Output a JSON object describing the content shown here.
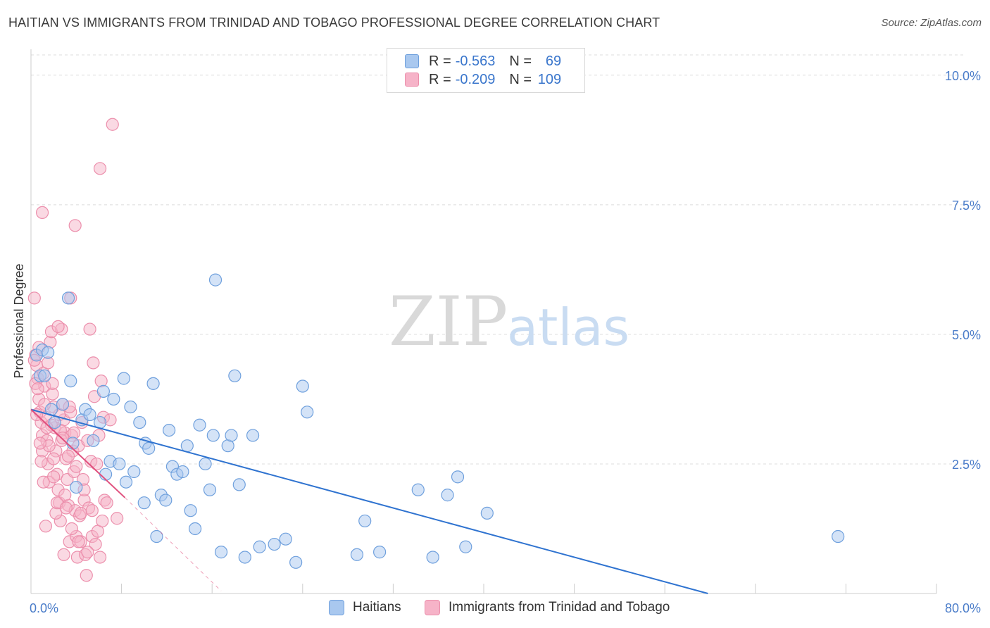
{
  "title": "HAITIAN VS IMMIGRANTS FROM TRINIDAD AND TOBAGO PROFESSIONAL DEGREE CORRELATION CHART",
  "source": "Source: ZipAtlas.com",
  "watermark": {
    "zip": "ZIP",
    "atlas": "atlas"
  },
  "colors": {
    "blue_fill": "#a9c8ef",
    "blue_stroke": "#6fa0dd",
    "blue_line": "#2f73d0",
    "pink_fill": "#f6b3c8",
    "pink_stroke": "#ec8fac",
    "pink_line": "#e0507e",
    "grid": "#dcdcdc",
    "tick_text": "#4a7cc9"
  },
  "legend": {
    "series": [
      {
        "r_label": "R =",
        "r_value": "-0.563",
        "n_label": "N =",
        "n_value": "69"
      },
      {
        "r_label": "R =",
        "r_value": "-0.209",
        "n_label": "N =",
        "n_value": "109"
      }
    ]
  },
  "bottom_legend": [
    "Haitians",
    "Immigrants from Trinidad and Tobago"
  ],
  "chart_data": {
    "type": "scatter",
    "ylabel": "Professional Degree",
    "xlabel": "",
    "xlim": [
      0,
      80
    ],
    "ylim": [
      0,
      10.5
    ],
    "x_tick_labels": [
      {
        "value": 0,
        "label": "0.0%"
      },
      {
        "value": 80,
        "label": "80.0%"
      }
    ],
    "y_tick_labels": [
      {
        "value": 2.5,
        "label": "2.5%"
      },
      {
        "value": 5.0,
        "label": "5.0%"
      },
      {
        "value": 7.5,
        "label": "7.5%"
      },
      {
        "value": 10.0,
        "label": "10.0%"
      }
    ],
    "series": [
      {
        "name": "Haitians",
        "color": "blue",
        "trend": {
          "x0": 0.0,
          "y0": 3.55,
          "x1": 59.8,
          "y1": 0.0,
          "style": "solid"
        },
        "points": [
          [
            0.5,
            4.6
          ],
          [
            1.0,
            4.7
          ],
          [
            1.5,
            4.65
          ],
          [
            0.8,
            4.2
          ],
          [
            1.2,
            4.2
          ],
          [
            1.8,
            3.55
          ],
          [
            2.1,
            3.3
          ],
          [
            2.8,
            3.65
          ],
          [
            3.3,
            5.7
          ],
          [
            3.5,
            4.1
          ],
          [
            3.7,
            2.9
          ],
          [
            4.0,
            2.05
          ],
          [
            4.5,
            3.35
          ],
          [
            4.8,
            3.55
          ],
          [
            5.2,
            3.45
          ],
          [
            5.5,
            2.95
          ],
          [
            6.1,
            3.3
          ],
          [
            6.4,
            3.9
          ],
          [
            6.6,
            2.3
          ],
          [
            7.0,
            2.55
          ],
          [
            7.3,
            3.75
          ],
          [
            7.8,
            2.5
          ],
          [
            8.2,
            4.15
          ],
          [
            8.4,
            2.15
          ],
          [
            8.8,
            3.6
          ],
          [
            9.1,
            2.35
          ],
          [
            9.6,
            3.3
          ],
          [
            10.0,
            1.75
          ],
          [
            10.1,
            2.9
          ],
          [
            10.4,
            2.8
          ],
          [
            10.8,
            4.05
          ],
          [
            11.1,
            1.1
          ],
          [
            11.5,
            1.9
          ],
          [
            11.9,
            1.8
          ],
          [
            12.2,
            3.15
          ],
          [
            12.5,
            2.45
          ],
          [
            12.9,
            2.3
          ],
          [
            13.4,
            2.35
          ],
          [
            13.8,
            2.85
          ],
          [
            14.1,
            1.6
          ],
          [
            14.5,
            1.25
          ],
          [
            14.9,
            3.25
          ],
          [
            15.4,
            2.5
          ],
          [
            15.8,
            2.0
          ],
          [
            16.1,
            3.05
          ],
          [
            16.3,
            6.05
          ],
          [
            16.8,
            0.8
          ],
          [
            17.4,
            2.85
          ],
          [
            17.7,
            3.05
          ],
          [
            18.0,
            4.2
          ],
          [
            18.4,
            2.1
          ],
          [
            18.9,
            0.7
          ],
          [
            19.6,
            3.05
          ],
          [
            20.2,
            0.9
          ],
          [
            21.5,
            0.95
          ],
          [
            22.5,
            1.05
          ],
          [
            23.4,
            0.6
          ],
          [
            24.0,
            4.0
          ],
          [
            24.4,
            3.5
          ],
          [
            28.8,
            0.75
          ],
          [
            29.5,
            1.4
          ],
          [
            30.8,
            0.8
          ],
          [
            34.2,
            2.0
          ],
          [
            35.5,
            0.7
          ],
          [
            36.8,
            1.9
          ],
          [
            37.7,
            2.25
          ],
          [
            38.4,
            0.9
          ],
          [
            40.3,
            1.55
          ],
          [
            71.3,
            1.1
          ]
        ]
      },
      {
        "name": "Immigrants from Trinidad and Tobago",
        "color": "pink",
        "trend": {
          "x0": 0.0,
          "y0": 3.55,
          "x1": 8.3,
          "y1": 1.85,
          "style": "solid",
          "extension": {
            "x1": 16.8,
            "y1": 0.05,
            "style": "dashed"
          }
        },
        "points": [
          [
            0.3,
            5.7
          ],
          [
            0.4,
            4.6
          ],
          [
            0.5,
            4.4
          ],
          [
            0.6,
            4.15
          ],
          [
            0.7,
            3.75
          ],
          [
            0.8,
            3.5
          ],
          [
            0.9,
            3.3
          ],
          [
            1.0,
            3.05
          ],
          [
            1.0,
            2.75
          ],
          [
            1.1,
            4.25
          ],
          [
            1.2,
            4.0
          ],
          [
            1.3,
            3.4
          ],
          [
            1.4,
            2.95
          ],
          [
            1.5,
            2.5
          ],
          [
            1.6,
            2.15
          ],
          [
            1.7,
            4.85
          ],
          [
            1.8,
            5.05
          ],
          [
            1.9,
            3.85
          ],
          [
            2.0,
            3.6
          ],
          [
            2.1,
            3.2
          ],
          [
            2.2,
            2.75
          ],
          [
            2.3,
            2.3
          ],
          [
            2.4,
            2.0
          ],
          [
            2.5,
            1.75
          ],
          [
            2.6,
            1.4
          ],
          [
            2.7,
            5.1
          ],
          [
            2.8,
            3.65
          ],
          [
            2.9,
            3.35
          ],
          [
            3.0,
            3.1
          ],
          [
            3.1,
            2.6
          ],
          [
            3.2,
            2.2
          ],
          [
            3.3,
            1.7
          ],
          [
            3.4,
            1.0
          ],
          [
            3.5,
            3.5
          ],
          [
            3.6,
            3.05
          ],
          [
            3.7,
            2.75
          ],
          [
            3.8,
            2.35
          ],
          [
            3.9,
            1.6
          ],
          [
            4.0,
            1.1
          ],
          [
            4.1,
            0.7
          ],
          [
            4.2,
            2.85
          ],
          [
            4.3,
            1.5
          ],
          [
            4.4,
            1.0
          ],
          [
            4.5,
            3.3
          ],
          [
            4.6,
            2.2
          ],
          [
            4.7,
            1.8
          ],
          [
            4.8,
            0.75
          ],
          [
            4.9,
            0.35
          ],
          [
            5.0,
            2.95
          ],
          [
            5.1,
            1.65
          ],
          [
            5.2,
            5.1
          ],
          [
            5.3,
            2.55
          ],
          [
            5.4,
            1.1
          ],
          [
            5.5,
            4.45
          ],
          [
            5.6,
            3.8
          ],
          [
            5.7,
            0.95
          ],
          [
            5.8,
            2.5
          ],
          [
            5.9,
            1.2
          ],
          [
            6.0,
            3.05
          ],
          [
            6.1,
            0.7
          ],
          [
            6.2,
            4.1
          ],
          [
            6.3,
            1.4
          ],
          [
            6.4,
            3.4
          ],
          [
            6.5,
            1.8
          ],
          [
            3.9,
            7.1
          ],
          [
            1.0,
            7.35
          ],
          [
            6.1,
            8.2
          ],
          [
            7.2,
            9.05
          ],
          [
            3.5,
            5.7
          ],
          [
            2.4,
            5.15
          ],
          [
            0.7,
            4.75
          ],
          [
            1.5,
            4.45
          ],
          [
            0.4,
            4.05
          ],
          [
            1.2,
            3.65
          ],
          [
            0.5,
            3.45
          ],
          [
            2.6,
            3.15
          ],
          [
            1.6,
            2.85
          ],
          [
            0.9,
            2.55
          ],
          [
            2.0,
            2.25
          ],
          [
            3.0,
            1.9
          ],
          [
            2.2,
            1.55
          ],
          [
            1.3,
            1.3
          ],
          [
            3.6,
            1.25
          ],
          [
            2.9,
            0.75
          ],
          [
            4.4,
            1.55
          ],
          [
            0.6,
            3.95
          ],
          [
            1.8,
            3.25
          ],
          [
            2.7,
            2.95
          ],
          [
            3.3,
            2.65
          ],
          [
            4.0,
            2.45
          ],
          [
            4.7,
            2.0
          ],
          [
            5.4,
            1.6
          ],
          [
            6.7,
            1.75
          ],
          [
            7.0,
            3.35
          ],
          [
            7.6,
            1.45
          ],
          [
            2.5,
            3.45
          ],
          [
            1.4,
            3.2
          ],
          [
            3.8,
            3.1
          ],
          [
            2.0,
            2.6
          ],
          [
            0.8,
            2.9
          ],
          [
            1.1,
            2.15
          ],
          [
            2.3,
            1.75
          ],
          [
            3.1,
            1.65
          ],
          [
            4.2,
            1.0
          ],
          [
            5.0,
            0.8
          ],
          [
            1.9,
            4.05
          ],
          [
            3.4,
            3.6
          ],
          [
            2.8,
            3.0
          ],
          [
            0.3,
            4.5
          ]
        ]
      }
    ]
  }
}
